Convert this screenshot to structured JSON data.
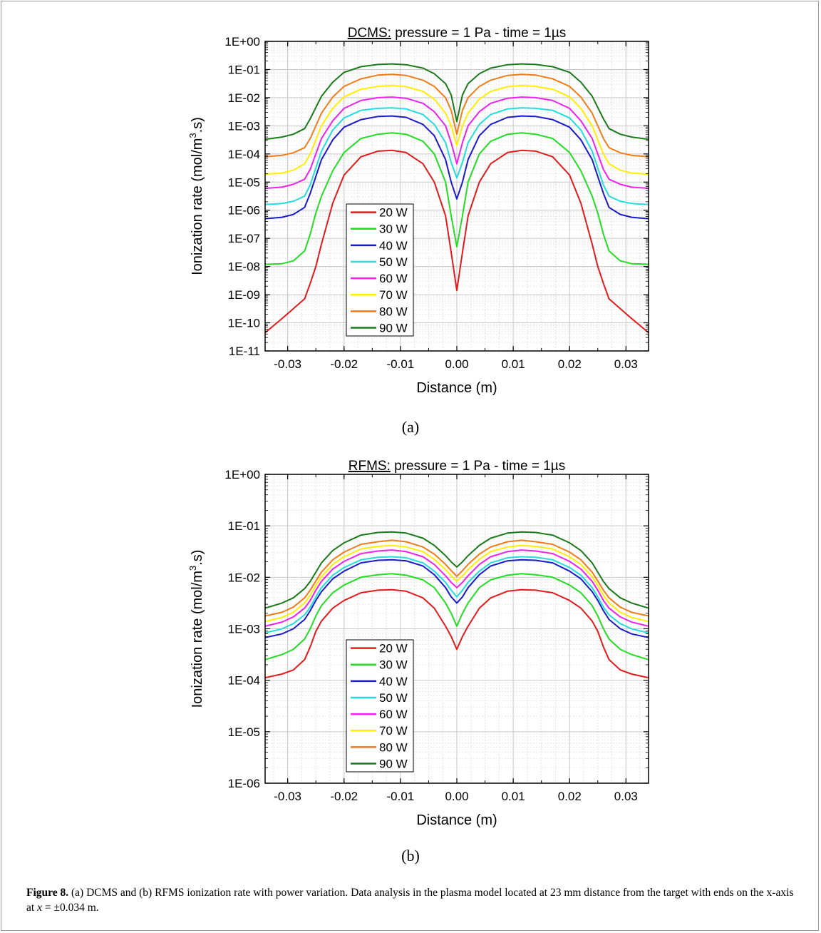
{
  "figure": {
    "panels": [
      {
        "label": "(a)"
      },
      {
        "label": "(b)"
      }
    ],
    "caption": {
      "label": "Figure 8.",
      "text_1": " (a) DCMS and (b) RFMS ionization rate with power variation. Data analysis in the plasma model located at 23 mm distance from the target with ends on the x-axis at ",
      "var": "x",
      "text_2": " = ±0.034 m."
    }
  },
  "chart_data": [
    {
      "type": "line",
      "title_underlined": "DCMS:",
      "title_rest": " pressure = 1 Pa - time = 1µs",
      "xlabel": "Distance (m)",
      "ylabel_main": "Ionization rate (mol/m",
      "ylabel_sup": "3",
      "ylabel_end": ".s)",
      "y_scale": "log",
      "xlim": [
        -0.034,
        0.034
      ],
      "ylim_exp": [
        -11,
        0
      ],
      "x_ticks": [
        "-0.03",
        "-0.02",
        "-0.01",
        "0.00",
        "0.01",
        "0.02",
        "0.03"
      ],
      "x_tick_values": [
        -0.03,
        -0.02,
        -0.01,
        0,
        0.01,
        0.02,
        0.03
      ],
      "y_ticks": [
        "1E-11",
        "1E-10",
        "1E-09",
        "1E-08",
        "1E-07",
        "1E-06",
        "1E-05",
        "1E-04",
        "1E-03",
        "1E-02",
        "1E-01",
        "1E+00"
      ],
      "grid": true,
      "legend_position": "bottom-left",
      "x": [
        0.034,
        0.031,
        0.029,
        0.027,
        0.026,
        0.025,
        0.024,
        0.022,
        0.02,
        0.017,
        0.014,
        0.0115,
        0.009,
        0.006,
        0.004,
        0.002,
        0.001,
        0.0
      ],
      "series": [
        {
          "name": "20 W",
          "color": "#e31a1c",
          "log10_y": [
            -10.35,
            -9.85,
            -9.5,
            -9.15,
            -8.6,
            -8.0,
            -7.2,
            -5.75,
            -4.75,
            -4.1,
            -3.9,
            -3.87,
            -3.95,
            -4.35,
            -5.0,
            -6.2,
            -7.5,
            -8.85
          ]
        },
        {
          "name": "30 W",
          "color": "#22dd22",
          "log10_y": [
            -7.92,
            -7.9,
            -7.8,
            -7.45,
            -6.85,
            -6.1,
            -5.5,
            -4.6,
            -3.95,
            -3.45,
            -3.3,
            -3.25,
            -3.3,
            -3.55,
            -4.0,
            -5.0,
            -6.2,
            -7.3
          ]
        },
        {
          "name": "40 W",
          "color": "#1a1acc",
          "log10_y": [
            -6.3,
            -6.25,
            -6.15,
            -5.9,
            -5.4,
            -4.8,
            -4.2,
            -3.5,
            -3.05,
            -2.78,
            -2.67,
            -2.65,
            -2.7,
            -2.95,
            -3.35,
            -4.2,
            -5.0,
            -5.6
          ]
        },
        {
          "name": "50 W",
          "color": "#22dddd",
          "log10_y": [
            -5.8,
            -5.76,
            -5.68,
            -5.5,
            -5.1,
            -4.5,
            -3.9,
            -3.15,
            -2.72,
            -2.45,
            -2.38,
            -2.36,
            -2.4,
            -2.6,
            -2.95,
            -3.6,
            -4.3,
            -4.85
          ]
        },
        {
          "name": "60 W",
          "color": "#ee22ee",
          "log10_y": [
            -5.22,
            -5.18,
            -5.08,
            -4.9,
            -4.55,
            -4.0,
            -3.45,
            -2.82,
            -2.38,
            -2.1,
            -2.0,
            -1.98,
            -2.02,
            -2.2,
            -2.5,
            -3.0,
            -3.6,
            -4.35
          ]
        },
        {
          "name": "70 W",
          "color": "#ffee00",
          "log10_y": [
            -4.72,
            -4.68,
            -4.58,
            -4.35,
            -4.0,
            -3.5,
            -3.0,
            -2.38,
            -1.97,
            -1.7,
            -1.6,
            -1.57,
            -1.61,
            -1.78,
            -2.05,
            -2.55,
            -3.0,
            -3.7
          ]
        },
        {
          "name": "80 W",
          "color": "#f07c18",
          "log10_y": [
            -4.1,
            -4.05,
            -3.96,
            -3.78,
            -3.45,
            -3.0,
            -2.55,
            -1.98,
            -1.6,
            -1.33,
            -1.2,
            -1.17,
            -1.21,
            -1.38,
            -1.6,
            -2.0,
            -2.45,
            -3.3
          ]
        },
        {
          "name": "90 W",
          "color": "#1a7a1a",
          "log10_y": [
            -3.48,
            -3.4,
            -3.3,
            -3.1,
            -2.75,
            -2.35,
            -1.95,
            -1.45,
            -1.1,
            -0.9,
            -0.82,
            -0.8,
            -0.83,
            -0.95,
            -1.15,
            -1.5,
            -1.9,
            -2.85
          ]
        }
      ]
    },
    {
      "type": "line",
      "title_underlined": "RFMS:",
      "title_rest": " pressure = 1 Pa - time = 1µs",
      "xlabel": "Distance (m)",
      "ylabel_main": "Ionization rate (mol/m",
      "ylabel_sup": "3",
      "ylabel_end": ".s)",
      "y_scale": "log",
      "xlim": [
        -0.034,
        0.034
      ],
      "ylim_exp": [
        -6,
        0
      ],
      "x_ticks": [
        "-0.03",
        "-0.02",
        "-0.01",
        "0.00",
        "0.01",
        "0.02",
        "0.03"
      ],
      "x_tick_values": [
        -0.03,
        -0.02,
        -0.01,
        0,
        0.01,
        0.02,
        0.03
      ],
      "y_ticks": [
        "1E-06",
        "1E-05",
        "1E-04",
        "1E-03",
        "1E-02",
        "1E-01",
        "1E+00"
      ],
      "grid": true,
      "legend_position": "bottom-left",
      "x": [
        0.034,
        0.031,
        0.029,
        0.027,
        0.026,
        0.025,
        0.024,
        0.022,
        0.02,
        0.017,
        0.014,
        0.0115,
        0.009,
        0.006,
        0.004,
        0.002,
        0.001,
        0.0
      ],
      "series": [
        {
          "name": "20 W",
          "color": "#e31a1c",
          "log10_y": [
            -3.95,
            -3.88,
            -3.8,
            -3.6,
            -3.35,
            -3.05,
            -2.85,
            -2.6,
            -2.45,
            -2.3,
            -2.25,
            -2.24,
            -2.27,
            -2.4,
            -2.6,
            -2.95,
            -3.15,
            -3.4
          ]
        },
        {
          "name": "30 W",
          "color": "#22dd22",
          "log10_y": [
            -3.6,
            -3.5,
            -3.4,
            -3.2,
            -3.0,
            -2.75,
            -2.55,
            -2.3,
            -2.15,
            -2.0,
            -1.95,
            -1.93,
            -1.96,
            -2.05,
            -2.2,
            -2.5,
            -2.7,
            -2.95
          ]
        },
        {
          "name": "40 W",
          "color": "#1a1acc",
          "log10_y": [
            -3.17,
            -3.1,
            -3.0,
            -2.82,
            -2.65,
            -2.45,
            -2.28,
            -2.03,
            -1.88,
            -1.72,
            -1.67,
            -1.66,
            -1.68,
            -1.78,
            -1.95,
            -2.2,
            -2.38,
            -2.5
          ]
        },
        {
          "name": "50 W",
          "color": "#22dddd",
          "log10_y": [
            -3.08,
            -3.0,
            -2.9,
            -2.73,
            -2.58,
            -2.38,
            -2.2,
            -1.96,
            -1.81,
            -1.66,
            -1.61,
            -1.6,
            -1.62,
            -1.72,
            -1.88,
            -2.1,
            -2.25,
            -2.38
          ]
        },
        {
          "name": "60 W",
          "color": "#ee22ee",
          "log10_y": [
            -2.95,
            -2.87,
            -2.77,
            -2.6,
            -2.45,
            -2.25,
            -2.08,
            -1.84,
            -1.69,
            -1.54,
            -1.49,
            -1.47,
            -1.5,
            -1.6,
            -1.75,
            -1.97,
            -2.1,
            -2.2
          ]
        },
        {
          "name": "70 W",
          "color": "#ffee00",
          "log10_y": [
            -2.86,
            -2.78,
            -2.68,
            -2.5,
            -2.35,
            -2.16,
            -1.99,
            -1.75,
            -1.6,
            -1.45,
            -1.4,
            -1.38,
            -1.41,
            -1.5,
            -1.65,
            -1.85,
            -1.97,
            -2.08
          ]
        },
        {
          "name": "80 W",
          "color": "#f07c18",
          "log10_y": [
            -2.75,
            -2.68,
            -2.58,
            -2.4,
            -2.25,
            -2.07,
            -1.9,
            -1.66,
            -1.51,
            -1.36,
            -1.31,
            -1.28,
            -1.31,
            -1.41,
            -1.55,
            -1.75,
            -1.87,
            -1.98
          ]
        },
        {
          "name": "90 W",
          "color": "#1a7a1a",
          "log10_y": [
            -2.6,
            -2.5,
            -2.4,
            -2.22,
            -2.08,
            -1.9,
            -1.72,
            -1.48,
            -1.33,
            -1.18,
            -1.13,
            -1.12,
            -1.14,
            -1.24,
            -1.38,
            -1.58,
            -1.7,
            -1.8
          ]
        }
      ]
    }
  ]
}
